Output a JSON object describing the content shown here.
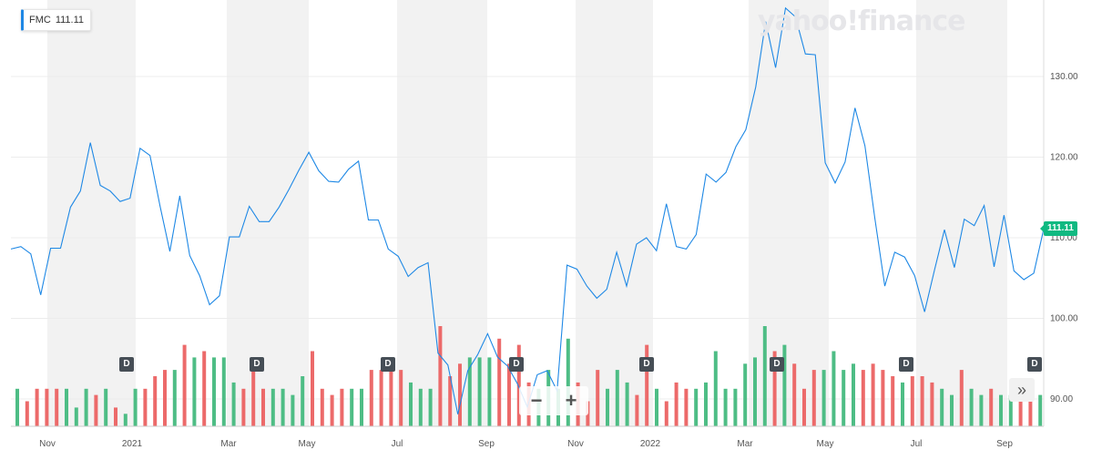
{
  "ticker": {
    "symbol": "FMC",
    "price": "111.11"
  },
  "brand": "yahoo!finance",
  "price_tag": "111.11",
  "dividend_label": "D",
  "dividend_markers": [
    0,
    1,
    2,
    3,
    4,
    5,
    6,
    7
  ],
  "zoom": {
    "minus": "−",
    "plus": "+"
  },
  "scroll_icon": "double-chevron-right-icon",
  "colors": {
    "line": "#1e88e5",
    "up": "#4ebd85",
    "down": "#ec6a6a",
    "band": "#f2f2f2"
  },
  "chart_data": {
    "type": "line",
    "title": "",
    "xlabel": "",
    "ylabel": "",
    "ylim": [
      86.5,
      138.5
    ],
    "yticks": [
      "90.00",
      "100.00",
      "110.00",
      "120.00",
      "130.00"
    ],
    "xticks": [
      "Nov",
      "2021",
      "Mar",
      "May",
      "Jul",
      "Sep",
      "Nov",
      "2022",
      "Mar",
      "May",
      "Jul",
      "Sep"
    ],
    "series": [
      {
        "values": [
          108.6,
          108.9,
          108.0,
          102.9,
          108.7,
          108.7,
          113.8,
          115.8,
          121.8,
          116.5,
          115.8,
          114.5,
          114.9,
          121.1,
          120.2,
          114.0,
          108.3,
          115.2,
          107.8,
          105.3,
          101.7,
          102.8,
          110.1,
          110.1,
          113.9,
          112.0,
          112.0,
          113.8,
          116.0,
          118.4,
          120.6,
          118.3,
          117.0,
          116.9,
          118.5,
          119.5,
          112.2,
          112.2,
          108.6,
          107.7,
          105.2,
          106.3,
          106.9,
          95.7,
          94.2,
          88.1,
          93.5,
          95.5,
          98.1,
          95.2,
          94.1,
          91.9,
          89.0,
          93.0,
          93.5,
          91.0,
          106.6,
          106.1,
          104.0,
          102.5,
          103.6,
          108.2,
          104.0,
          109.2,
          110.0,
          108.4,
          114.2,
          108.9,
          108.6,
          110.4,
          117.9,
          116.9,
          118.1,
          121.3,
          123.4,
          128.7,
          136.8,
          131.1,
          138.5,
          137.4,
          132.8,
          132.7,
          119.3,
          116.8,
          119.4,
          126.1,
          121.4,
          112.4,
          104.0,
          108.2,
          107.6,
          105.3,
          100.8,
          106.0,
          111.0,
          106.3,
          112.3,
          111.5,
          114.0,
          106.4,
          112.8,
          105.9,
          104.8,
          105.6,
          111.1
        ]
      }
    ],
    "volume": {
      "values": [
        6,
        4,
        6,
        6,
        6,
        6,
        3,
        6,
        5,
        6,
        3,
        2,
        6,
        6,
        8,
        9,
        9,
        13,
        11,
        12,
        11,
        11,
        7,
        6,
        9,
        6,
        6,
        6,
        5,
        8,
        12,
        6,
        5,
        6,
        6,
        6,
        9,
        9,
        9,
        9,
        7,
        6,
        6,
        16,
        8,
        10,
        11,
        11,
        11,
        14,
        10,
        13,
        7,
        6,
        9,
        6,
        14,
        7,
        4,
        9,
        6,
        9,
        7,
        5,
        13,
        6,
        4,
        7,
        6,
        6,
        7,
        12,
        6,
        6,
        10,
        11,
        16,
        12,
        13,
        10,
        6,
        9,
        9,
        12,
        9,
        10,
        9,
        10,
        9,
        8,
        7,
        8,
        8,
        7,
        6,
        5,
        9,
        6,
        5,
        6,
        5,
        5,
        5,
        5,
        5
      ],
      "up": [
        1,
        0,
        0,
        0,
        0,
        1,
        1,
        1,
        0,
        1,
        0,
        1,
        1,
        0,
        0,
        0,
        1,
        0,
        1,
        0,
        1,
        1,
        1,
        0,
        0,
        0,
        1,
        1,
        1,
        1,
        0,
        0,
        0,
        0,
        1,
        1,
        0,
        0,
        0,
        0,
        1,
        1,
        1,
        0,
        0,
        0,
        1,
        1,
        1,
        0,
        0,
        0,
        0,
        1,
        1,
        1,
        1,
        0,
        0,
        0,
        1,
        1,
        1,
        0,
        0,
        1,
        0,
        0,
        0,
        1,
        1,
        1,
        1,
        1,
        1,
        1,
        1,
        0,
        1,
        0,
        0,
        0,
        1,
        1,
        1,
        1,
        0,
        0,
        0,
        0,
        1,
        0,
        0,
        0,
        1,
        1,
        0,
        1,
        1,
        0,
        1,
        1,
        0,
        0,
        1
      ]
    }
  }
}
